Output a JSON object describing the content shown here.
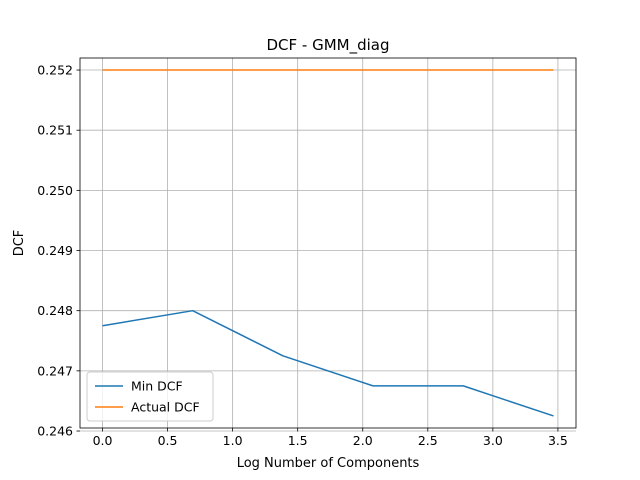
{
  "chart_data": {
    "type": "line",
    "title": "DCF - GMM_diag",
    "xlabel": "Log Number of Components",
    "ylabel": "DCF",
    "xlim": [
      -0.173,
      3.639
    ],
    "ylim": [
      0.24605,
      0.2522
    ],
    "grid": true,
    "legend_position": "bottom-left",
    "x": [
      0.0,
      0.693,
      1.386,
      2.079,
      2.773,
      3.466
    ],
    "xticks": [
      0.0,
      0.5,
      1.0,
      1.5,
      2.0,
      2.5,
      3.0,
      3.5
    ],
    "xtick_labels": [
      "0.0",
      "0.5",
      "1.0",
      "1.5",
      "2.0",
      "2.5",
      "3.0",
      "3.5"
    ],
    "yticks": [
      0.246,
      0.247,
      0.248,
      0.249,
      0.25,
      0.251,
      0.252
    ],
    "ytick_labels": [
      "0.246",
      "0.247",
      "0.248",
      "0.249",
      "0.250",
      "0.251",
      "0.252"
    ],
    "series": [
      {
        "name": "Min DCF",
        "color": "#1f77b4",
        "values": [
          0.24775,
          0.248,
          0.24725,
          0.24675,
          0.24675,
          0.24625
        ]
      },
      {
        "name": "Actual DCF",
        "color": "#ff7f0e",
        "values": [
          0.252,
          0.252,
          0.252,
          0.252,
          0.252,
          0.252
        ]
      }
    ]
  }
}
